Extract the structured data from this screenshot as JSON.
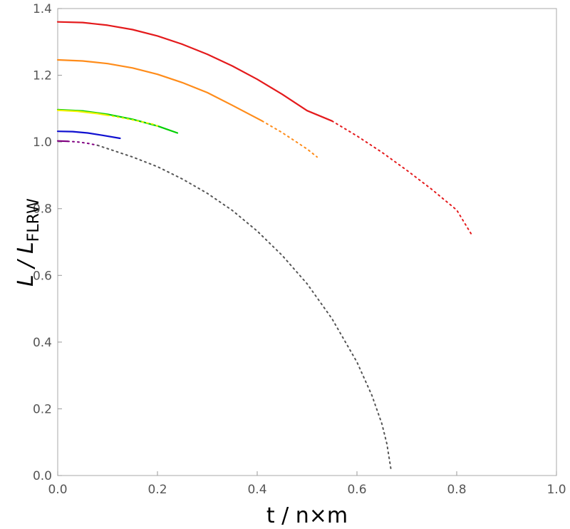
{
  "chart_data": {
    "type": "line",
    "xlabel": "t / n×m",
    "ylabel_main": "L / L",
    "ylabel_sub": "FLRW",
    "xlim": [
      0,
      1.0
    ],
    "ylim": [
      0,
      1.4
    ],
    "x_ticks": [
      "0.0",
      "0.2",
      "0.4",
      "0.6",
      "0.8",
      "1.0"
    ],
    "y_ticks": [
      "0.0",
      "0.2",
      "0.4",
      "0.6",
      "0.8",
      "1.0",
      "1.2",
      "1.4"
    ],
    "series": [
      {
        "color": "#e41a1c",
        "solid": [
          [
            0.0,
            1.36
          ],
          [
            0.05,
            1.358
          ],
          [
            0.1,
            1.35
          ],
          [
            0.15,
            1.337
          ],
          [
            0.2,
            1.318
          ],
          [
            0.25,
            1.293
          ],
          [
            0.3,
            1.263
          ],
          [
            0.35,
            1.228
          ],
          [
            0.4,
            1.188
          ],
          [
            0.45,
            1.143
          ],
          [
            0.5,
            1.094
          ],
          [
            0.55,
            1.063
          ]
        ],
        "dotted": [
          [
            0.55,
            1.063
          ],
          [
            0.6,
            1.018
          ],
          [
            0.65,
            0.969
          ],
          [
            0.7,
            0.915
          ],
          [
            0.75,
            0.858
          ],
          [
            0.8,
            0.796
          ],
          [
            0.83,
            0.722
          ]
        ]
      },
      {
        "color": "#ff8c1a",
        "solid": [
          [
            0.0,
            1.246
          ],
          [
            0.05,
            1.243
          ],
          [
            0.1,
            1.235
          ],
          [
            0.15,
            1.222
          ],
          [
            0.2,
            1.203
          ],
          [
            0.25,
            1.178
          ],
          [
            0.3,
            1.148
          ],
          [
            0.35,
            1.11
          ],
          [
            0.41,
            1.063
          ]
        ],
        "dotted": [
          [
            0.41,
            1.063
          ],
          [
            0.45,
            1.028
          ],
          [
            0.5,
            0.979
          ],
          [
            0.52,
            0.955
          ]
        ]
      },
      {
        "color": "#00d000",
        "solid": [
          [
            0.0,
            1.097
          ],
          [
            0.05,
            1.093
          ],
          [
            0.1,
            1.083
          ],
          [
            0.15,
            1.068
          ],
          [
            0.2,
            1.048
          ],
          [
            0.24,
            1.027
          ]
        ],
        "dotted": []
      },
      {
        "color": "#f2f200",
        "solid": [
          [
            0.0,
            1.095
          ],
          [
            0.04,
            1.092
          ],
          [
            0.08,
            1.085
          ],
          [
            0.1,
            1.08
          ]
        ],
        "dotted": [
          [
            0.1,
            1.08
          ],
          [
            0.13,
            1.072
          ],
          [
            0.16,
            1.063
          ],
          [
            0.19,
            1.054
          ],
          [
            0.2,
            1.048
          ]
        ]
      },
      {
        "color": "#1010d0",
        "solid": [
          [
            0.0,
            1.032
          ],
          [
            0.03,
            1.031
          ],
          [
            0.06,
            1.027
          ],
          [
            0.09,
            1.02
          ],
          [
            0.125,
            1.011
          ]
        ],
        "dotted": []
      },
      {
        "color": "#800080",
        "solid": [
          [
            0.0,
            1.003
          ],
          [
            0.02,
            1.002
          ]
        ],
        "dotted": [
          [
            0.02,
            1.002
          ],
          [
            0.04,
            1.0
          ],
          [
            0.06,
            0.996
          ],
          [
            0.08,
            0.99
          ]
        ]
      },
      {
        "color": "#555555",
        "solid": [],
        "dotted": [
          [
            0.08,
            0.99
          ],
          [
            0.15,
            0.955
          ],
          [
            0.2,
            0.926
          ],
          [
            0.25,
            0.889
          ],
          [
            0.3,
            0.846
          ],
          [
            0.35,
            0.795
          ],
          [
            0.4,
            0.733
          ],
          [
            0.45,
            0.66
          ],
          [
            0.5,
            0.575
          ],
          [
            0.55,
            0.47
          ],
          [
            0.6,
            0.34
          ],
          [
            0.63,
            0.24
          ],
          [
            0.65,
            0.155
          ],
          [
            0.66,
            0.095
          ],
          [
            0.668,
            0.02
          ]
        ]
      }
    ]
  }
}
